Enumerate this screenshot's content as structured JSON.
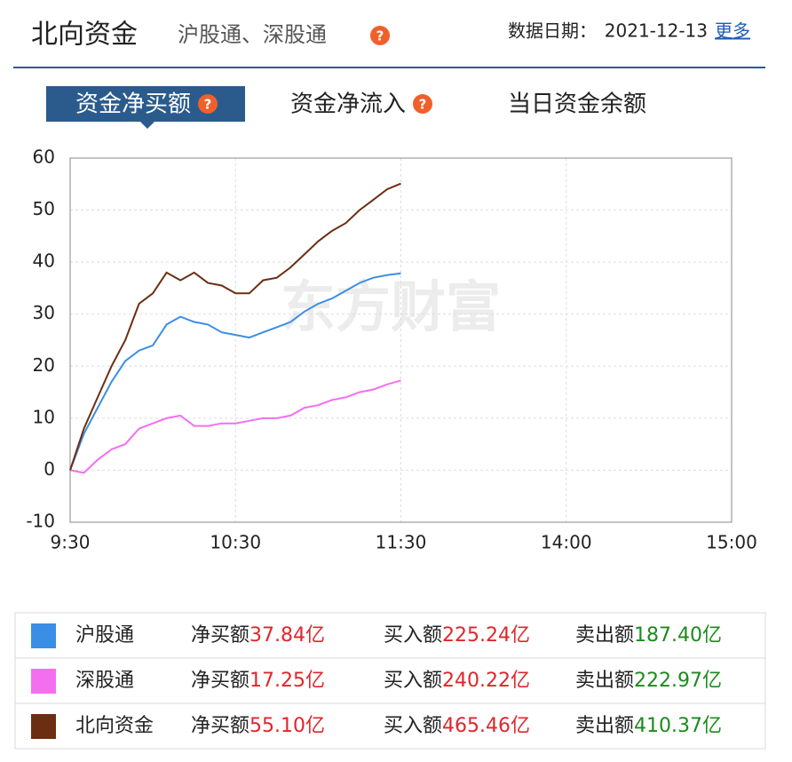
{
  "header": {
    "title": "北向资金",
    "subtitle": "沪股通、深股通",
    "date_label": "数据日期：",
    "date": "2021-12-13",
    "more": "更多"
  },
  "tabs": [
    "资金净买额",
    "资金净流入",
    "当日资金余额"
  ],
  "active_tab": 0,
  "chart_data": {
    "type": "line",
    "watermark": "东方财富",
    "x": [
      "9:30",
      "9:35",
      "9:40",
      "9:45",
      "9:50",
      "9:55",
      "10:00",
      "10:05",
      "10:10",
      "10:15",
      "10:20",
      "10:25",
      "10:30",
      "10:35",
      "10:40",
      "10:45",
      "10:50",
      "10:55",
      "11:00",
      "11:05",
      "11:10",
      "11:15",
      "11:20",
      "11:25",
      "11:30"
    ],
    "series": [
      {
        "name": "沪股通",
        "color": "#3a8ee6",
        "values": [
          0,
          7,
          12,
          17,
          21,
          23,
          24,
          28,
          29.5,
          28.5,
          28,
          26.5,
          26,
          25.5,
          26.5,
          27.5,
          28.5,
          30.5,
          32,
          33,
          34.5,
          36,
          37,
          37.5,
          37.84
        ]
      },
      {
        "name": "深股通",
        "color": "#f46ff0",
        "values": [
          0,
          -0.5,
          2,
          4,
          5,
          8,
          9,
          10,
          10.5,
          8.5,
          8.5,
          9,
          9,
          9.5,
          10,
          10,
          10.5,
          12,
          12.5,
          13.5,
          14,
          15,
          15.5,
          16.5,
          17.25
        ]
      },
      {
        "name": "北向资金",
        "color": "#6b2e12",
        "values": [
          0,
          8,
          14,
          20,
          25,
          32,
          34,
          38,
          36.5,
          38,
          36,
          35.5,
          34,
          34,
          36.5,
          37,
          39,
          41.5,
          44,
          46,
          47.5,
          50,
          52,
          54,
          55.1
        ]
      }
    ],
    "xlim": [
      "9:30",
      "15:00"
    ],
    "xticks": [
      "9:30",
      "10:30",
      "11:30",
      "14:00",
      "15:00"
    ],
    "ylim": [
      -10,
      60
    ],
    "yticks": [
      -10,
      0,
      10,
      20,
      30,
      40,
      50,
      60
    ],
    "grid": true
  },
  "table": {
    "rows": [
      [
        "沪股通",
        "净买额",
        "37.84亿",
        "买入额",
        "225.24亿",
        "卖出额",
        "187.40亿"
      ],
      [
        "深股通",
        "净买额",
        "17.25亿",
        "买入额",
        "240.22亿",
        "卖出额",
        "222.97亿"
      ],
      [
        "北向资金",
        "净买额",
        "55.10亿",
        "买入额",
        "465.46亿",
        "卖出额",
        "410.37亿"
      ]
    ]
  }
}
